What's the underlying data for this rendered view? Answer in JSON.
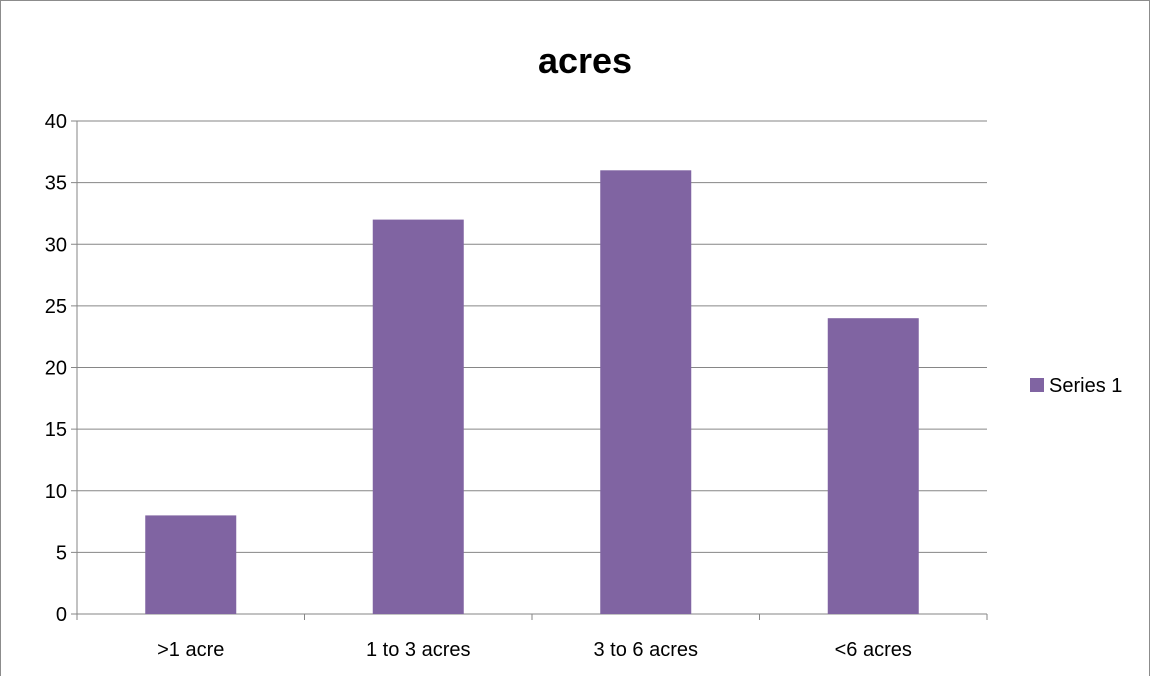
{
  "chart_data": {
    "type": "bar",
    "title": "acres",
    "xlabel": "",
    "ylabel": "",
    "categories": [
      ">1 acre",
      "1 to 3 acres",
      "3 to 6 acres",
      "<6 acres"
    ],
    "series": [
      {
        "name": "Series 1",
        "values": [
          8,
          32,
          36,
          24
        ],
        "color": "#8064A2"
      }
    ],
    "ylim": [
      0,
      40
    ],
    "yticks": [
      0,
      5,
      10,
      15,
      20,
      25,
      30,
      35,
      40
    ],
    "ytick_labels": [
      "0",
      "5",
      "10",
      "15",
      "20",
      "25",
      "30",
      "35",
      "40"
    ],
    "grid": true,
    "legend_position": "right"
  }
}
